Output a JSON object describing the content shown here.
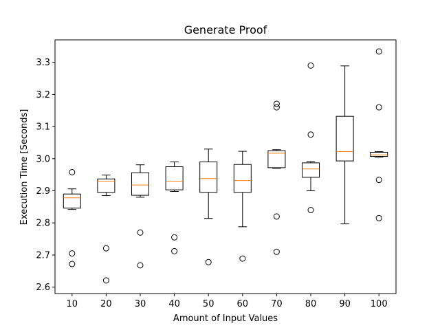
{
  "chart_data": {
    "type": "box",
    "title": "Generate Proof",
    "xlabel": "Amount of Input Values",
    "ylabel": "Execution Time [Seconds]",
    "ylim": [
      2.58,
      3.37
    ],
    "yticks": [
      "2.6",
      "2.7",
      "2.8",
      "2.9",
      "3.0",
      "3.1",
      "3.2",
      "3.3"
    ],
    "grid": false,
    "median_color": "#ff7f0e",
    "box_color": "#000000",
    "categories": [
      "10",
      "20",
      "30",
      "40",
      "50",
      "60",
      "70",
      "80",
      "90",
      "100"
    ],
    "boxes": [
      {
        "whisker_low": 2.842,
        "q1": 2.846,
        "median": 2.878,
        "q3": 2.89,
        "whisker_high": 2.906,
        "outliers": [
          2.958,
          2.705,
          2.672
        ]
      },
      {
        "whisker_low": 2.885,
        "q1": 2.895,
        "median": 2.93,
        "q3": 2.937,
        "whisker_high": 2.949,
        "outliers": [
          2.721,
          2.621
        ]
      },
      {
        "whisker_low": 2.88,
        "q1": 2.886,
        "median": 2.918,
        "q3": 2.956,
        "whisker_high": 2.981,
        "outliers": [
          2.77,
          2.668
        ]
      },
      {
        "whisker_low": 2.898,
        "q1": 2.903,
        "median": 2.93,
        "q3": 2.975,
        "whisker_high": 2.99,
        "outliers": [
          2.755,
          2.712
        ]
      },
      {
        "whisker_low": 2.814,
        "q1": 2.895,
        "median": 2.938,
        "q3": 2.99,
        "whisker_high": 3.03,
        "outliers": [
          2.678
        ]
      },
      {
        "whisker_low": 2.788,
        "q1": 2.895,
        "median": 2.932,
        "q3": 2.982,
        "whisker_high": 3.023,
        "outliers": [
          2.689
        ]
      },
      {
        "whisker_low": 2.97,
        "q1": 2.972,
        "median": 3.017,
        "q3": 3.025,
        "whisker_high": 3.028,
        "outliers": [
          3.171,
          3.16,
          2.82,
          2.71
        ]
      },
      {
        "whisker_low": 2.9,
        "q1": 2.942,
        "median": 2.968,
        "q3": 2.987,
        "whisker_high": 2.991,
        "outliers": [
          3.29,
          3.075,
          2.84
        ]
      },
      {
        "whisker_low": 2.797,
        "q1": 2.993,
        "median": 3.022,
        "q3": 3.132,
        "whisker_high": 3.289,
        "outliers": []
      },
      {
        "whisker_low": 3.005,
        "q1": 3.007,
        "median": 3.012,
        "q3": 3.02,
        "whisker_high": 3.022,
        "outliers": [
          3.334,
          3.16,
          2.934,
          2.815
        ]
      }
    ]
  }
}
